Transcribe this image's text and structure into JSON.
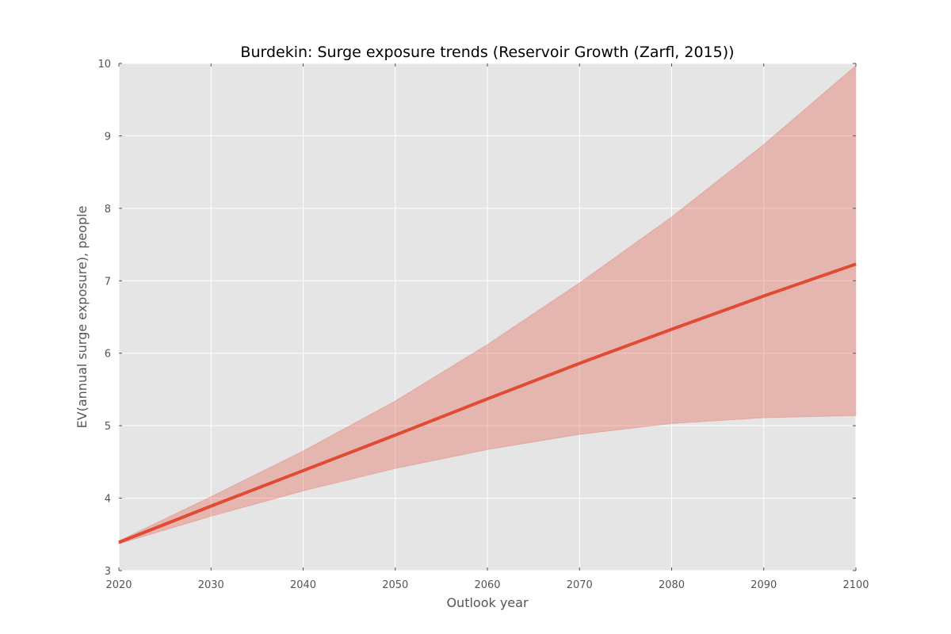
{
  "chart_data": {
    "type": "area",
    "title": "Burdekin: Surge exposure trends (Reservoir Growth (Zarfl, 2015))",
    "xlabel": "Outlook year",
    "ylabel": "EV(annual surge exposure), people",
    "xlim": [
      2020,
      2100
    ],
    "ylim": [
      3,
      10
    ],
    "xticks": [
      2020,
      2030,
      2040,
      2050,
      2060,
      2070,
      2080,
      2090,
      2100
    ],
    "yticks": [
      3,
      4,
      5,
      6,
      7,
      8,
      9,
      10
    ],
    "grid": true,
    "x": [
      2020,
      2030,
      2040,
      2050,
      2060,
      2070,
      2080,
      2090,
      2100
    ],
    "series": [
      {
        "role": "mean",
        "values": [
          3.39,
          3.89,
          4.38,
          4.87,
          5.37,
          5.86,
          6.33,
          6.79,
          7.23
        ]
      },
      {
        "role": "upper",
        "values": [
          3.41,
          4.02,
          4.65,
          5.34,
          6.12,
          6.97,
          7.88,
          8.88,
          9.97
        ]
      },
      {
        "role": "lower",
        "values": [
          3.37,
          3.75,
          4.1,
          4.41,
          4.67,
          4.88,
          5.03,
          5.11,
          5.14
        ]
      }
    ],
    "colors": {
      "line": "#e24a33",
      "band": "#e24a33",
      "plot_background": "#e5e5e5",
      "grid": "#ffffff"
    }
  }
}
